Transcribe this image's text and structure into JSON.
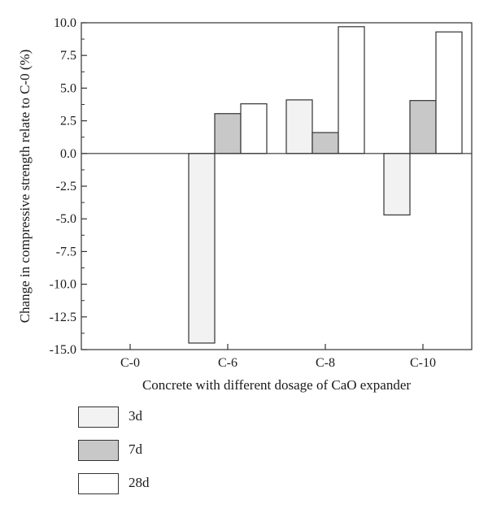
{
  "chart_data": {
    "type": "bar",
    "categories": [
      "C-0",
      "C-6",
      "C-8",
      "C-10"
    ],
    "series": [
      {
        "name": "3d",
        "values": [
          0,
          -14.5,
          4.1,
          -4.7
        ],
        "color": "#f2f2f2"
      },
      {
        "name": "7d",
        "values": [
          0,
          3.05,
          1.6,
          4.05
        ],
        "color": "#c8c8c8"
      },
      {
        "name": "28d",
        "values": [
          0,
          3.8,
          9.7,
          9.3
        ],
        "color": "#ffffff"
      }
    ],
    "xlabel": "Concrete with different dosage of CaO expander",
    "ylabel": "Change in compressive strength relate to C-0 (%)",
    "ylim": [
      -15,
      10
    ],
    "yticks": [
      "-15.0",
      "-12.5",
      "-10.0",
      "-7.5",
      "-5.0",
      "-2.5",
      "0.0",
      "2.5",
      "5.0",
      "7.5",
      "10.0"
    ],
    "grid": false,
    "legend_position": "bottom-left"
  }
}
